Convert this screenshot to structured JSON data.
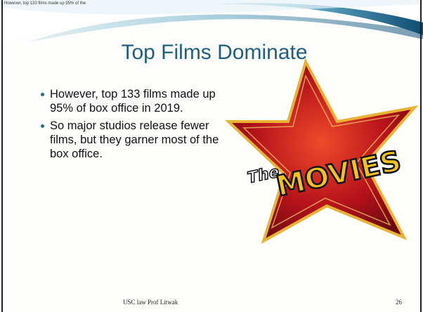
{
  "corner_text": "However, top 133 films made up 95% of the",
  "title": "Top Films Dominate",
  "bullets": [
    "However, top 133 films made up 95% of box office in 2019.",
    "So major studios release fewer films, but they garner most of the box office."
  ],
  "image": {
    "text_small": "The",
    "text_large": "MOVIES"
  },
  "footer": "USC law Prof Litwak",
  "page_number": "26"
}
